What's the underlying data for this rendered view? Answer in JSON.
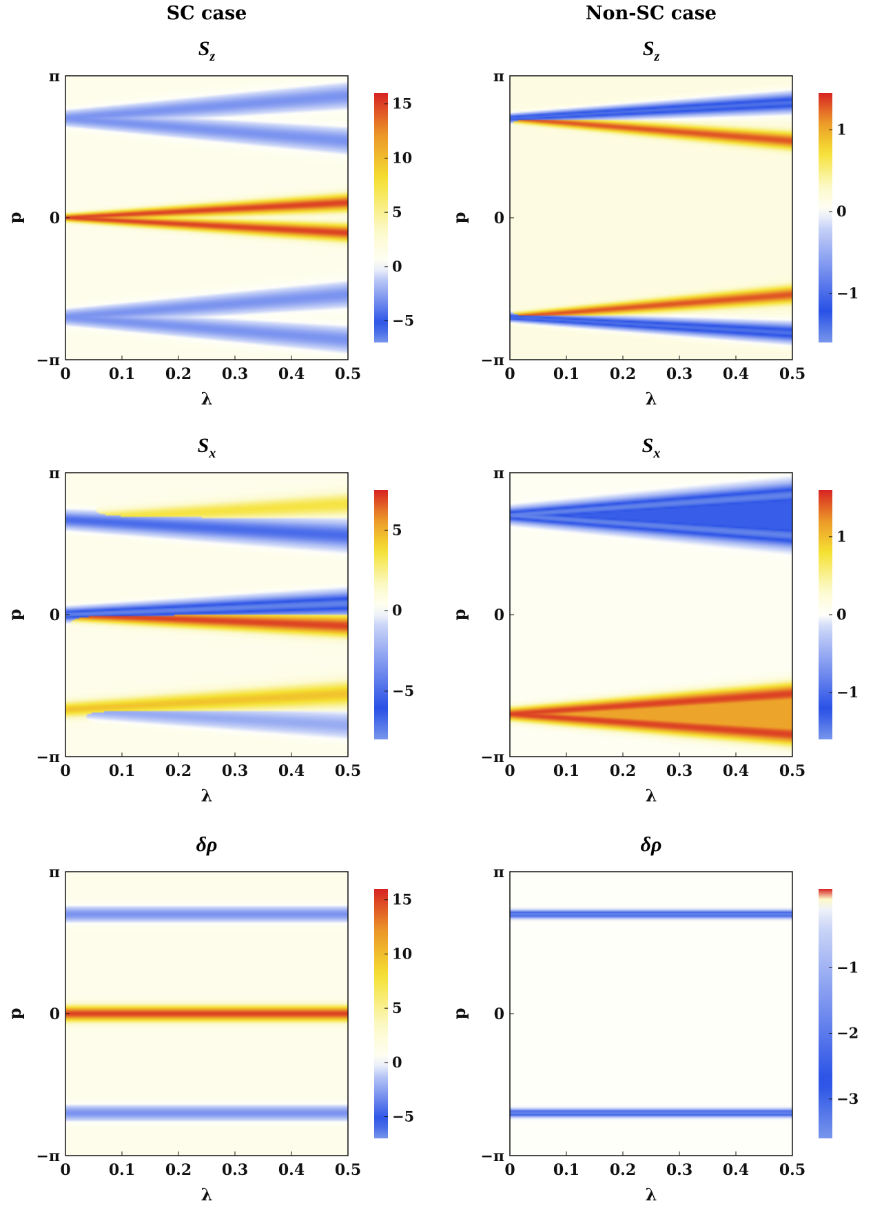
{
  "columns": [
    "SC case",
    "Non-SC case"
  ],
  "chart_data": [
    {
      "type": "heatmap",
      "id": "sc-sz",
      "title_main": "S",
      "title_sub": "z",
      "xlabel": "λ",
      "ylabel": "p",
      "xlim": [
        0,
        0.5
      ],
      "ylim": [
        -3.1416,
        3.1416
      ],
      "xticks": [
        "0",
        "0.1",
        "0.2",
        "0.3",
        "0.4",
        "0.5"
      ],
      "yticks": [
        "−π",
        "0",
        "π"
      ],
      "colorbar": {
        "min": -7,
        "max": 16,
        "ticks": [
          15,
          10,
          5,
          0,
          -5
        ],
        "tick_labels": [
          "15",
          "10",
          "5",
          "0",
          "−5"
        ]
      },
      "background_value": 1,
      "features": [
        {
          "p0": 0,
          "slope": 0.67,
          "width": 0.06,
          "value": 15,
          "branches": [
            1,
            -1
          ]
        },
        {
          "p0": 2.2,
          "slope": 1.0,
          "width": 0.12,
          "value": -3,
          "branches": [
            1,
            -1
          ]
        },
        {
          "p0": -2.2,
          "slope": 1.0,
          "width": 0.12,
          "value": -3,
          "branches": [
            1,
            -1
          ]
        }
      ]
    },
    {
      "type": "heatmap",
      "id": "nsc-sz",
      "title_main": "S",
      "title_sub": "z",
      "xlabel": "λ",
      "ylabel": "p",
      "xlim": [
        0,
        0.5
      ],
      "ylim": [
        -3.1416,
        3.1416
      ],
      "xticks": [
        "0",
        "0.1",
        "0.2",
        "0.3",
        "0.4",
        "0.5"
      ],
      "yticks": [
        "−π",
        "0",
        "π"
      ],
      "colorbar": {
        "min": -1.6,
        "max": 1.45,
        "ticks": [
          1,
          0,
          -1
        ],
        "tick_labels": [
          "1",
          "0",
          "−1"
        ]
      },
      "background_value": 0.15,
      "features": [
        {
          "p0": 2.2,
          "slope": 1.0,
          "width": 0.06,
          "value": 1.3,
          "branches": [
            -1
          ]
        },
        {
          "p0": 2.2,
          "slope": 0.7,
          "width": 0.06,
          "value": -1.4,
          "branches": [
            1
          ]
        },
        {
          "p0": -2.2,
          "slope": 1.0,
          "width": 0.06,
          "value": 1.3,
          "branches": [
            1
          ]
        },
        {
          "p0": -2.2,
          "slope": 0.7,
          "width": 0.06,
          "value": -1.4,
          "branches": [
            -1
          ]
        }
      ]
    },
    {
      "type": "heatmap",
      "id": "sc-sx",
      "title_main": "S",
      "title_sub": "x",
      "xlabel": "λ",
      "ylabel": "p",
      "xlim": [
        0,
        0.5
      ],
      "ylim": [
        -3.1416,
        3.1416
      ],
      "xticks": [
        "0",
        "0.1",
        "0.2",
        "0.3",
        "0.4",
        "0.5"
      ],
      "yticks": [
        "−π",
        "0",
        "π"
      ],
      "colorbar": {
        "min": -8,
        "max": 7.5,
        "ticks": [
          5,
          0,
          -5
        ],
        "tick_labels": [
          "5",
          "0",
          "−5"
        ]
      },
      "background_value": 0.5,
      "features": [
        {
          "p0": 0,
          "slope": 0.5,
          "width": 0.09,
          "value": -7.5,
          "branches": [
            1
          ]
        },
        {
          "p0": 0,
          "slope": 0.5,
          "width": 0.09,
          "value": 7,
          "branches": [
            -1
          ]
        },
        {
          "p0": 2.1,
          "slope": 0.7,
          "width": 0.1,
          "value": 3.5,
          "branches": [
            1
          ]
        },
        {
          "p0": 2.1,
          "slope": 0.7,
          "width": 0.12,
          "value": -5,
          "branches": [
            -1
          ]
        },
        {
          "p0": -2.1,
          "slope": 0.7,
          "width": 0.12,
          "value": 4.5,
          "branches": [
            1
          ]
        },
        {
          "p0": -2.1,
          "slope": 0.7,
          "width": 0.1,
          "value": -2.5,
          "branches": [
            -1
          ]
        }
      ]
    },
    {
      "type": "heatmap",
      "id": "nsc-sx",
      "title_main": "S",
      "title_sub": "x",
      "xlabel": "λ",
      "ylabel": "p",
      "xlim": [
        0,
        0.5
      ],
      "ylim": [
        -3.1416,
        3.1416
      ],
      "xticks": [
        "0",
        "0.1",
        "0.2",
        "0.3",
        "0.4",
        "0.5"
      ],
      "yticks": [
        "−π",
        "0",
        "π"
      ],
      "colorbar": {
        "min": -1.6,
        "max": 1.6,
        "ticks": [
          1,
          0,
          -1
        ],
        "tick_labels": [
          "1",
          "0",
          "−1"
        ]
      },
      "background_value": 0.05,
      "features": [
        {
          "p0": 2.2,
          "slope": 0.9,
          "width": 0.1,
          "value": -1.5,
          "branches": [
            1,
            -1
          ],
          "fill": true
        },
        {
          "p0": -2.2,
          "slope": 0.9,
          "width": 0.1,
          "value": 1.5,
          "branches": [
            1,
            -1
          ],
          "fill": true
        }
      ]
    },
    {
      "type": "heatmap",
      "id": "sc-drho",
      "title_main": "δρ",
      "title_sub": "",
      "xlabel": "λ",
      "ylabel": "p",
      "xlim": [
        0,
        0.5
      ],
      "ylim": [
        -3.1416,
        3.1416
      ],
      "xticks": [
        "0",
        "0.1",
        "0.2",
        "0.3",
        "0.4",
        "0.5"
      ],
      "yticks": [
        "−π",
        "0",
        "π"
      ],
      "colorbar": {
        "min": -7,
        "max": 16,
        "ticks": [
          15,
          10,
          5,
          0,
          -5
        ],
        "tick_labels": [
          "15",
          "10",
          "5",
          "0",
          "−5"
        ]
      },
      "background_value": 1,
      "features": [
        {
          "p0": 0,
          "slope": 0,
          "width": 0.12,
          "value": 15,
          "branches": [
            1
          ]
        },
        {
          "p0": 2.2,
          "slope": 0,
          "width": 0.12,
          "value": -3,
          "branches": [
            1
          ]
        },
        {
          "p0": -2.2,
          "slope": 0,
          "width": 0.12,
          "value": -3,
          "branches": [
            1
          ]
        }
      ]
    },
    {
      "type": "heatmap",
      "id": "nsc-drho",
      "title_main": "δρ",
      "title_sub": "",
      "xlabel": "λ",
      "ylabel": "p",
      "xlim": [
        0,
        0.5
      ],
      "ylim": [
        -3.1416,
        3.1416
      ],
      "xticks": [
        "0",
        "0.1",
        "0.2",
        "0.3",
        "0.4",
        "0.5"
      ],
      "yticks": [
        "−π",
        "0",
        "π"
      ],
      "colorbar": {
        "min": -3.6,
        "max": 0.2,
        "ticks": [
          -1,
          -2,
          -3
        ],
        "tick_labels": [
          "−1",
          "−2",
          "−3"
        ]
      },
      "background_value": 0,
      "features": [
        {
          "p0": 2.2,
          "slope": 0,
          "width": 0.05,
          "value": -3.5,
          "branches": [
            1
          ]
        },
        {
          "p0": -2.2,
          "slope": 0,
          "width": 0.05,
          "value": -3.5,
          "branches": [
            1
          ]
        }
      ]
    }
  ]
}
